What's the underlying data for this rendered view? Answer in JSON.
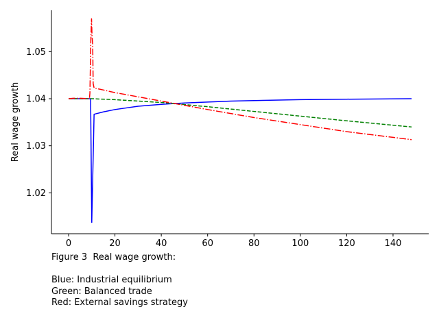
{
  "chart_data": {
    "type": "line",
    "title": "",
    "xlabel": "",
    "ylabel": "Real wage growth",
    "xlim": [
      -7.4,
      155.4
    ],
    "ylim": [
      1.0113,
      1.0588
    ],
    "x_ticks": [
      0,
      20,
      40,
      60,
      80,
      100,
      120,
      140
    ],
    "x_tick_labels": [
      "0",
      "20",
      "40",
      "60",
      "80",
      "100",
      "120",
      "140"
    ],
    "y_ticks": [
      1.02,
      1.03,
      1.04,
      1.05
    ],
    "y_tick_labels": [
      "1.02",
      "1.03",
      "1.04",
      "1.05"
    ],
    "grid": false,
    "series": [
      {
        "color": "#0000ff",
        "dash": "solid",
        "points": [
          [
            0,
            1.04
          ],
          [
            9,
            1.04
          ],
          [
            9.5,
            1.04
          ],
          [
            10,
            1.0137
          ],
          [
            11,
            1.0367
          ],
          [
            15,
            1.0372
          ],
          [
            20,
            1.0377
          ],
          [
            30,
            1.0384
          ],
          [
            40,
            1.0388
          ],
          [
            50,
            1.0391
          ],
          [
            60,
            1.0393
          ],
          [
            70,
            1.0395
          ],
          [
            80,
            1.0396
          ],
          [
            100,
            1.0398
          ],
          [
            120,
            1.0399
          ],
          [
            148,
            1.04
          ]
        ]
      },
      {
        "color": "#008000",
        "dash": "dashed",
        "points": [
          [
            0,
            1.04
          ],
          [
            10,
            1.04
          ],
          [
            20,
            1.0398
          ],
          [
            40,
            1.0392
          ],
          [
            60,
            1.0383
          ],
          [
            80,
            1.0373
          ],
          [
            100,
            1.0363
          ],
          [
            120,
            1.0353
          ],
          [
            148,
            1.034
          ]
        ]
      },
      {
        "color": "#ff0000",
        "dash": "dashdot",
        "points": [
          [
            0,
            1.04
          ],
          [
            2,
            1.0401
          ],
          [
            5,
            1.0401
          ],
          [
            9,
            1.04
          ],
          [
            9.2,
            1.0412
          ],
          [
            9.6,
            1.0525
          ],
          [
            9.9,
            1.057
          ],
          [
            10.1,
            1.0535
          ],
          [
            10.4,
            1.0515
          ],
          [
            10.6,
            1.0432
          ],
          [
            11,
            1.0423
          ],
          [
            20,
            1.0413
          ],
          [
            40,
            1.0395
          ],
          [
            60,
            1.0377
          ],
          [
            80,
            1.036
          ],
          [
            100,
            1.0345
          ],
          [
            120,
            1.033
          ],
          [
            148,
            1.0313
          ]
        ]
      }
    ]
  },
  "caption": {
    "title": "Figure 3  Real wage growth:",
    "line1": "Blue: Industrial equilibrium",
    "line2": "Green: Balanced trade",
    "line3": "Red: External savings strategy"
  }
}
